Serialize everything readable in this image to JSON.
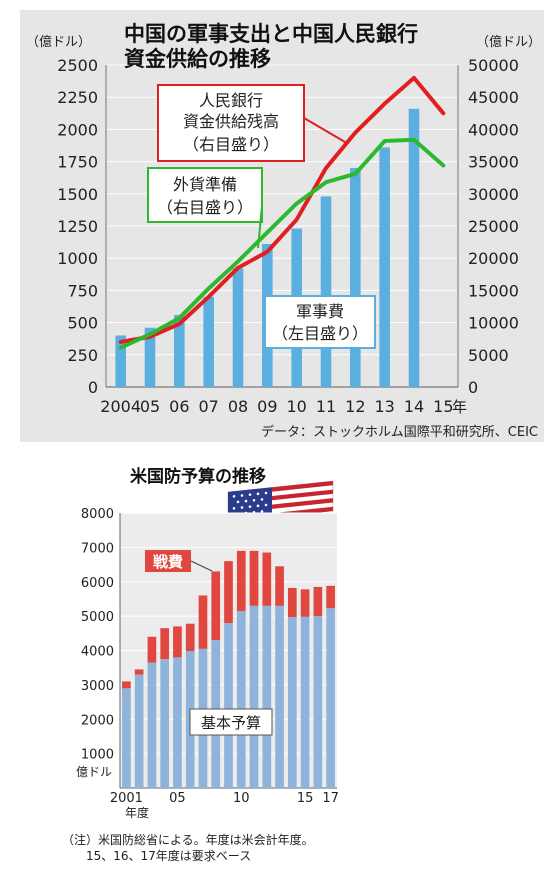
{
  "chart_data": [
    {
      "type": "bar+line",
      "title": "中国の軍事支出と中国人民銀行資金供給の推移",
      "title_lines": [
        "中国の軍事支出と中国人民銀行",
        "資金供給の推移"
      ],
      "left_unit": "（億ドル）",
      "right_unit": "（億ドル）",
      "x": [
        2004,
        2005,
        2006,
        2007,
        2008,
        2009,
        2010,
        2011,
        2012,
        2013,
        2014,
        2015
      ],
      "x_tick_labels": [
        "2004",
        "05",
        "06",
        "07",
        "08",
        "09",
        "10",
        "11",
        "12",
        "13",
        "14",
        "15"
      ],
      "x_unit": "年",
      "left_axis": {
        "range": [
          0,
          2500
        ],
        "ticks": [
          0,
          250,
          500,
          750,
          1000,
          1250,
          1500,
          1750,
          2000,
          2250,
          2500
        ]
      },
      "right_axis": {
        "range": [
          0,
          50000
        ],
        "ticks": [
          0,
          5000,
          10000,
          15000,
          20000,
          25000,
          30000,
          35000,
          40000,
          45000,
          50000
        ]
      },
      "bars": {
        "name": "軍事費（左目盛り）",
        "name_lines": [
          "軍事費",
          "（左目盛り）"
        ],
        "axis": "left",
        "color": "#5aaee0",
        "values": [
          400,
          460,
          560,
          700,
          920,
          1110,
          1230,
          1480,
          1700,
          1860,
          2160,
          null
        ]
      },
      "lines": [
        {
          "name": "人民銀行資金供給残高（右目盛り）",
          "name_lines": [
            "人民銀行",
            "資金供給残高",
            "（右目盛り）"
          ],
          "axis": "right",
          "color": "#e02020",
          "values": [
            7000,
            7800,
            9800,
            14000,
            18500,
            21000,
            26000,
            34000,
            39500,
            44000,
            48000,
            42500
          ]
        },
        {
          "name": "外貨準備（右目盛り）",
          "name_lines": [
            "外貨準備",
            "（右目盛り）"
          ],
          "axis": "right",
          "color": "#2db830",
          "values": [
            6100,
            8200,
            10700,
            15300,
            19500,
            24000,
            28500,
            31800,
            33100,
            38200,
            38400,
            34400
          ]
        }
      ],
      "source": "データ：ストックホルム国際平和研究所、CEIC",
      "grid": true
    },
    {
      "type": "stacked-bar",
      "title": "米国防予算の推移",
      "categories": [
        "2001",
        "2002",
        "2003",
        "2004",
        "2005",
        "2006",
        "2007",
        "2008",
        "2009",
        "2010",
        "2011",
        "2012",
        "2013",
        "2014",
        "2015",
        "2016",
        "2017"
      ],
      "x_tick_labels": {
        "2001": "2001",
        "2005": "05",
        "2010": "10",
        "2015": "15",
        "2017": "17"
      },
      "x_unit": "年度",
      "y_unit": "億ドル",
      "y_axis": {
        "range": [
          0,
          8000
        ],
        "ticks": [
          0,
          1000,
          2000,
          3000,
          4000,
          5000,
          6000,
          7000,
          8000
        ]
      },
      "series": [
        {
          "name": "基本予算",
          "color": "#8fb4dc",
          "values": [
            2900,
            3300,
            3650,
            3750,
            3800,
            3980,
            4050,
            4300,
            4800,
            5150,
            5300,
            5300,
            5300,
            4970,
            4980,
            5000,
            5230
          ]
        },
        {
          "name": "戦費",
          "color": "#e0473f",
          "values": [
            200,
            150,
            750,
            900,
            900,
            800,
            1550,
            2000,
            1800,
            1750,
            1600,
            1550,
            1150,
            850,
            800,
            850,
            650
          ]
        }
      ],
      "note": "（注）米国防総省による。年度は米会計年度。",
      "note2": "15、16、17年度は要求ベース",
      "grid": true
    }
  ]
}
